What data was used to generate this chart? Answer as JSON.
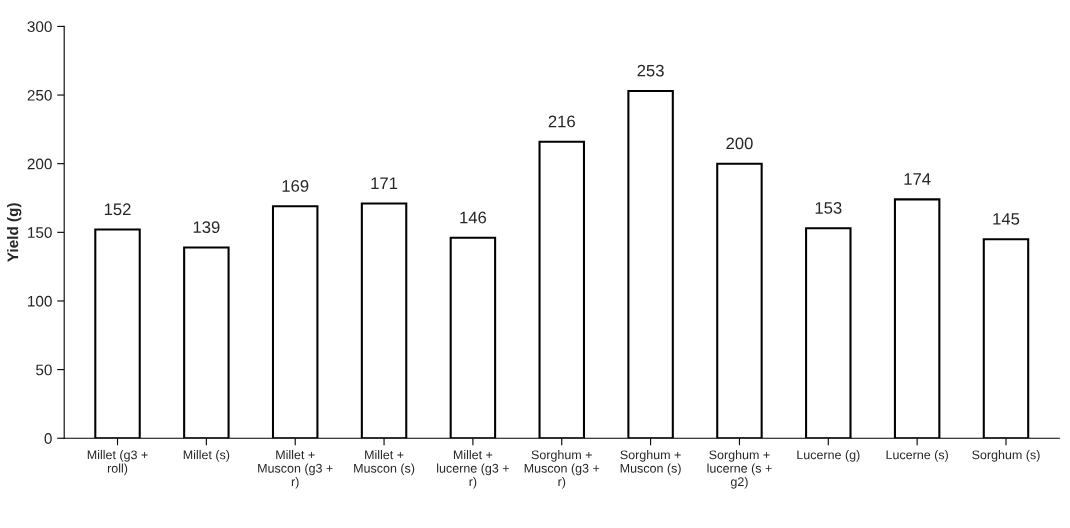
{
  "chart_data": {
    "type": "bar",
    "ylabel": "Yield (g)",
    "categories": [
      "Millet (g3 + roll)",
      "Millet (s)",
      "Millet + Muscon (g3 + r)",
      "Millet + Muscon (s)",
      "Millet + lucerne (g3 + r)",
      "Sorghum + Muscon (g3 + r)",
      "Sorghum + Muscon (s)",
      "Sorghum + lucerne (s + g2)",
      "Lucerne (g)",
      "Lucerne (s)",
      "Sorghum (s)"
    ],
    "values": [
      152,
      139,
      169,
      171,
      146,
      216,
      253,
      200,
      153,
      174,
      145
    ],
    "color": "#ffffff",
    "ylim": [
      0,
      300
    ],
    "yticks": [
      0,
      50,
      100,
      150,
      200,
      250,
      300
    ],
    "data_labels": true,
    "grid": false
  }
}
